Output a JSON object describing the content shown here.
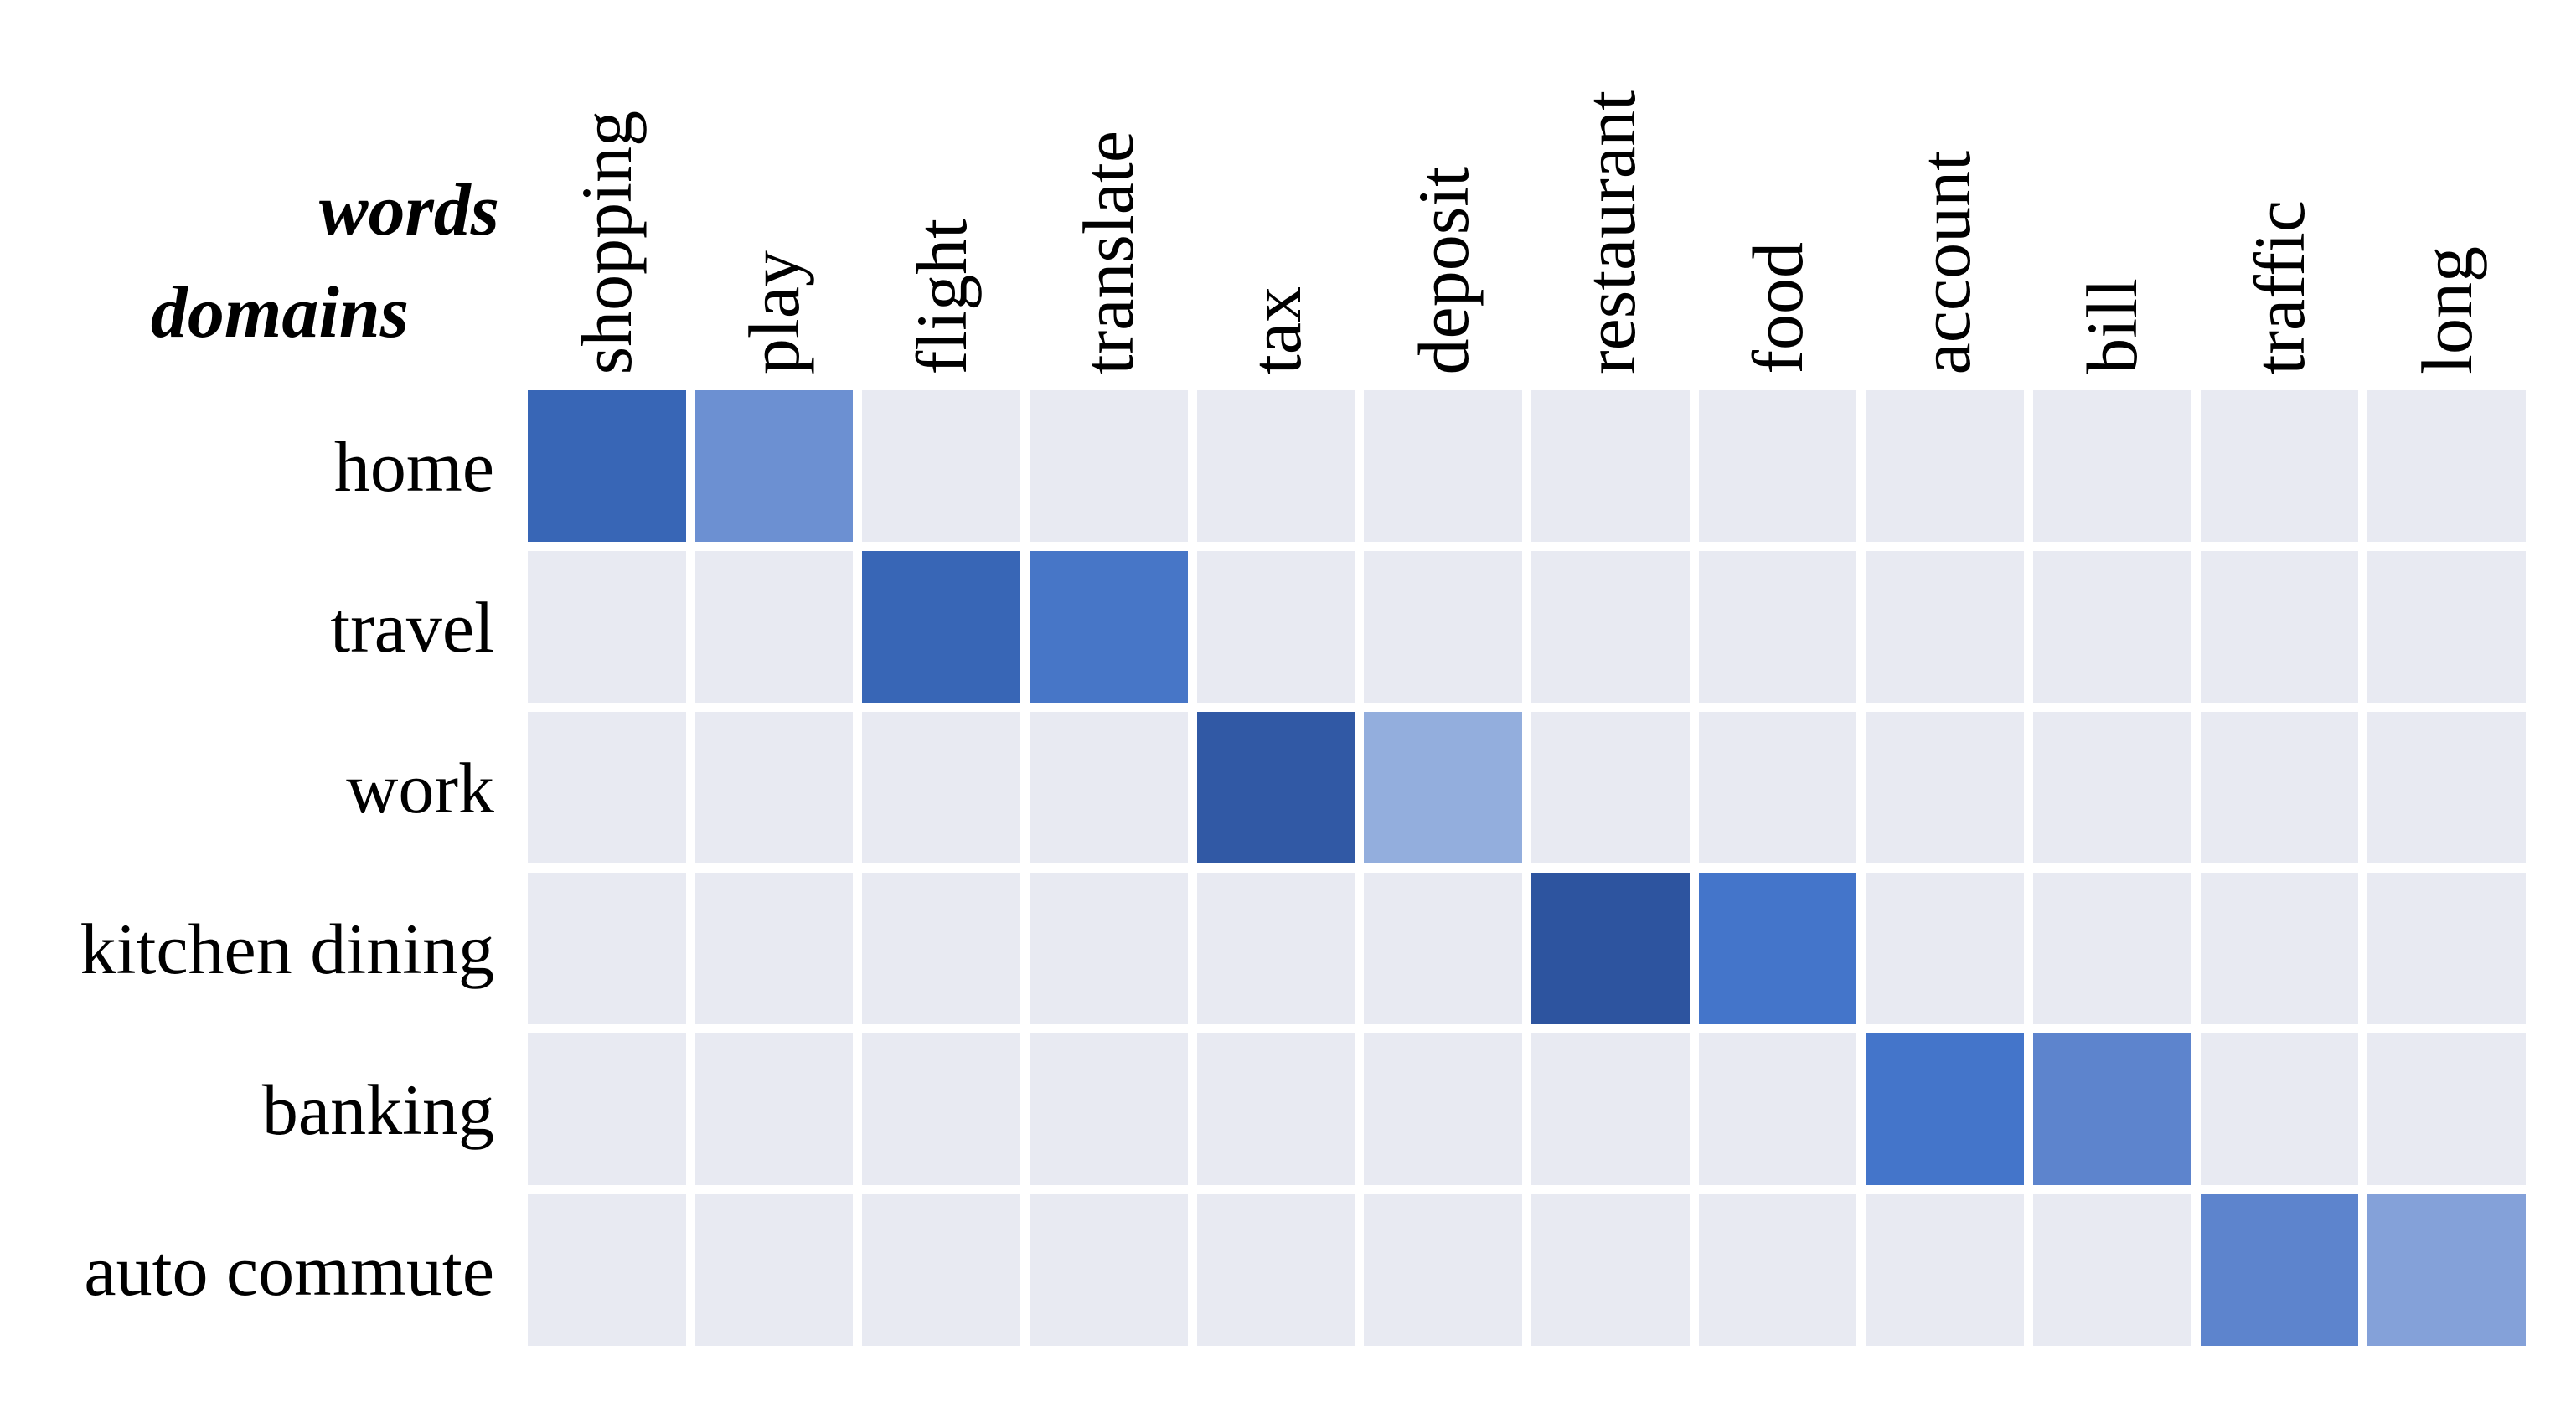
{
  "chart_data": {
    "type": "heatmap",
    "x_axis_label": "words",
    "y_axis_label": "domains",
    "columns": [
      "shopping",
      "play",
      "flight",
      "translate",
      "tax",
      "deposit",
      "restaurant",
      "food",
      "account",
      "bill",
      "traffic",
      "long"
    ],
    "rows": [
      "home",
      "travel",
      "work",
      "kitchen dining",
      "banking",
      "auto commute"
    ],
    "empty_color": "#e8eaf2",
    "grid_gap_color": "#ffffff",
    "legend": "none",
    "highlighted_cells": [
      {
        "row": "home",
        "col": "shopping",
        "color": "#3866b6",
        "intensity_estimate": 0.82
      },
      {
        "row": "home",
        "col": "play",
        "color": "#6c90d2",
        "intensity_estimate": 0.55
      },
      {
        "row": "travel",
        "col": "flight",
        "color": "#3866b6",
        "intensity_estimate": 0.82
      },
      {
        "row": "travel",
        "col": "translate",
        "color": "#4776c7",
        "intensity_estimate": 0.7
      },
      {
        "row": "work",
        "col": "tax",
        "color": "#3159a5",
        "intensity_estimate": 0.92
      },
      {
        "row": "work",
        "col": "deposit",
        "color": "#93aedd",
        "intensity_estimate": 0.35
      },
      {
        "row": "kitchen dining",
        "col": "restaurant",
        "color": "#2d549f",
        "intensity_estimate": 0.95
      },
      {
        "row": "kitchen dining",
        "col": "food",
        "color": "#4475ca",
        "intensity_estimate": 0.72
      },
      {
        "row": "banking",
        "col": "account",
        "color": "#4475ca",
        "intensity_estimate": 0.72
      },
      {
        "row": "banking",
        "col": "bill",
        "color": "#5d84cd",
        "intensity_estimate": 0.6
      },
      {
        "row": "auto commute",
        "col": "traffic",
        "color": "#5d84cd",
        "intensity_estimate": 0.6
      },
      {
        "row": "auto commute",
        "col": "long",
        "color": "#84a1d9",
        "intensity_estimate": 0.42
      }
    ]
  }
}
